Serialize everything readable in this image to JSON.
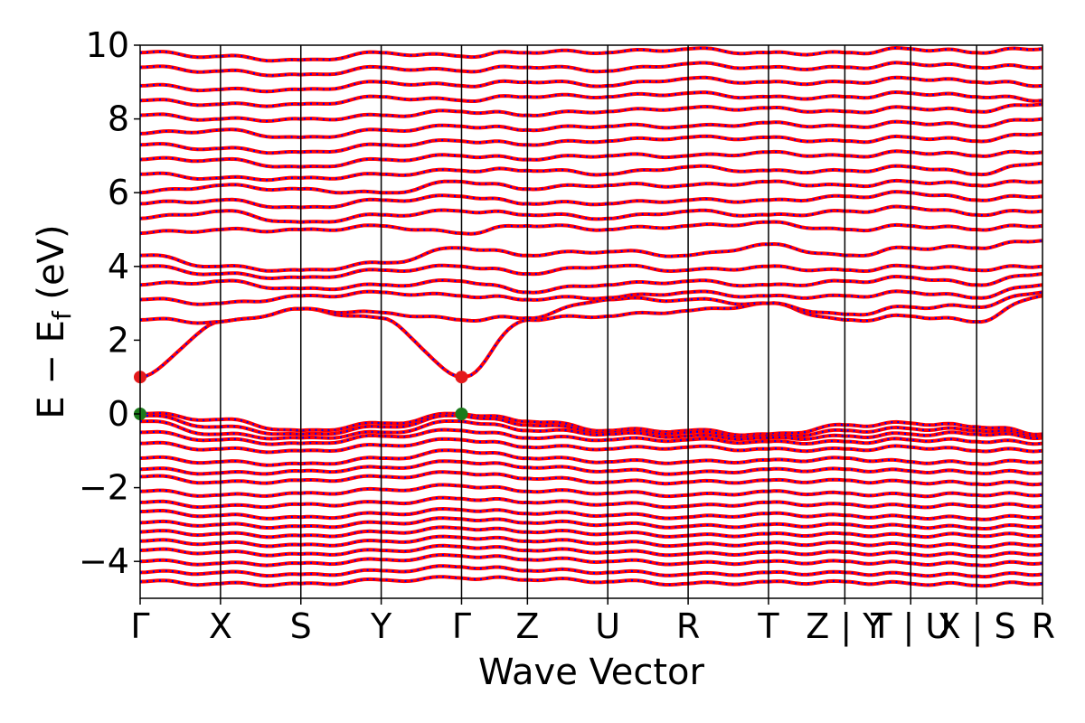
{
  "chart_data": {
    "type": "line",
    "title": "",
    "xlabel": "Wave Vector",
    "ylabel_main": "E − E",
    "ylabel_sub": "f",
    "ylabel_unit": " (eV)",
    "ylim": [
      -5,
      10
    ],
    "yticks": [
      -4,
      -2,
      0,
      2,
      4,
      6,
      8,
      10
    ],
    "ytick_labels": [
      "−4",
      "−2",
      "0",
      "2",
      "4",
      "6",
      "8",
      "10"
    ],
    "kpath_positions": [
      0,
      1,
      2,
      3,
      4,
      4.82,
      5.82,
      6.82,
      7.82,
      8.77,
      9.59,
      10.41,
      11.23
    ],
    "kpath_labels": [
      "Γ",
      "X",
      "S",
      "Y",
      "Γ",
      "Z",
      "U",
      "R",
      "T",
      "Z | Y",
      "T | U",
      "X | S",
      "R"
    ],
    "series": [
      {
        "color": "#ff0000",
        "style": "solid"
      },
      {
        "color": "#0000ff",
        "style": "dotted"
      }
    ],
    "markers": [
      {
        "x": 0,
        "y": 1.0,
        "color": "#e41a1c"
      },
      {
        "x": 4,
        "y": 1.0,
        "color": "#e41a1c"
      },
      {
        "x": 0,
        "y": 0.0,
        "color": "#1b7a1b"
      },
      {
        "x": 4,
        "y": 0.0,
        "color": "#1b7a1b"
      }
    ],
    "valence_bands": [
      [
        0.0,
        -0.15,
        -0.45,
        -0.25,
        0.0,
        -0.2,
        -0.45,
        -0.45,
        -0.55,
        -0.3,
        -0.25,
        -0.35,
        -0.55
      ],
      [
        -0.05,
        -0.35,
        -0.55,
        -0.35,
        -0.05,
        -0.3,
        -0.5,
        -0.5,
        -0.6,
        -0.45,
        -0.4,
        -0.45,
        -0.6
      ],
      [
        -0.2,
        -0.55,
        -0.65,
        -0.5,
        -0.2,
        -0.45,
        -0.55,
        -0.6,
        -0.65,
        -0.6,
        -0.55,
        -0.55,
        -0.65
      ],
      [
        -0.5,
        -0.7,
        -0.8,
        -0.6,
        -0.45,
        -0.65,
        -0.7,
        -0.7,
        -0.75,
        -0.75,
        -0.7,
        -0.75,
        -0.8
      ],
      [
        -0.8,
        -0.95,
        -1.0,
        -0.85,
        -0.7,
        -0.9,
        -0.95,
        -0.9,
        -0.95,
        -0.95,
        -0.9,
        -1.0,
        -1.0
      ],
      [
        -1.2,
        -1.3,
        -1.35,
        -1.2,
        -1.0,
        -1.2,
        -1.3,
        -1.3,
        -1.25,
        -1.2,
        -1.3,
        -1.35,
        -1.3
      ],
      [
        -1.5,
        -1.6,
        -1.55,
        -1.45,
        -1.3,
        -1.45,
        -1.55,
        -1.6,
        -1.5,
        -1.5,
        -1.55,
        -1.6,
        -1.6
      ],
      [
        -1.7,
        -1.85,
        -1.8,
        -1.7,
        -1.6,
        -1.75,
        -1.85,
        -1.85,
        -1.8,
        -1.8,
        -1.85,
        -1.9,
        -1.9
      ],
      [
        -2.1,
        -2.2,
        -2.15,
        -2.05,
        -1.95,
        -2.1,
        -2.15,
        -2.2,
        -2.1,
        -2.15,
        -2.2,
        -2.2,
        -2.2
      ],
      [
        -2.4,
        -2.5,
        -2.45,
        -2.4,
        -2.3,
        -2.4,
        -2.45,
        -2.5,
        -2.4,
        -2.45,
        -2.5,
        -2.5,
        -2.5
      ],
      [
        -2.65,
        -2.75,
        -2.8,
        -2.7,
        -2.6,
        -2.7,
        -2.75,
        -2.8,
        -2.7,
        -2.75,
        -2.8,
        -2.85,
        -2.8
      ],
      [
        -2.95,
        -3.0,
        -3.05,
        -2.95,
        -2.85,
        -2.95,
        -3.0,
        -3.05,
        -3.0,
        -3.0,
        -3.05,
        -3.1,
        -3.05
      ],
      [
        -3.2,
        -3.25,
        -3.3,
        -3.2,
        -3.1,
        -3.2,
        -3.25,
        -3.3,
        -3.25,
        -3.25,
        -3.3,
        -3.3,
        -3.3
      ],
      [
        -3.45,
        -3.5,
        -3.55,
        -3.45,
        -3.35,
        -3.45,
        -3.5,
        -3.55,
        -3.5,
        -3.5,
        -3.55,
        -3.6,
        -3.55
      ],
      [
        -3.7,
        -3.75,
        -3.8,
        -3.7,
        -3.6,
        -3.7,
        -3.75,
        -3.8,
        -3.75,
        -3.75,
        -3.8,
        -3.85,
        -3.8
      ],
      [
        -4.0,
        -4.05,
        -4.05,
        -3.95,
        -3.85,
        -3.95,
        -4.0,
        -4.05,
        -4.0,
        -4.0,
        -4.05,
        -4.1,
        -4.05
      ],
      [
        -4.3,
        -4.3,
        -4.35,
        -4.25,
        -4.15,
        -4.25,
        -4.3,
        -4.35,
        -4.3,
        -4.3,
        -4.35,
        -4.4,
        -4.35
      ],
      [
        -4.55,
        -4.6,
        -4.6,
        -4.5,
        -4.45,
        -4.5,
        -4.55,
        -4.6,
        -4.55,
        -4.55,
        -4.6,
        -4.65,
        -4.6
      ]
    ],
    "conduction_bands": [
      [
        1.0,
        2.5,
        2.85,
        2.6,
        1.0,
        2.55,
        2.65,
        2.8,
        3.0,
        2.55,
        2.65,
        2.5,
        3.2
      ],
      [
        2.55,
        2.5,
        2.85,
        2.75,
        2.55,
        2.6,
        3.1,
        3.1,
        3.0,
        2.7,
        2.9,
        2.9,
        3.3
      ],
      [
        3.1,
        3.0,
        3.2,
        3.3,
        3.2,
        3.1,
        3.15,
        3.3,
        3.2,
        3.2,
        3.3,
        3.15,
        3.5
      ],
      [
        3.5,
        3.6,
        3.4,
        3.5,
        3.6,
        3.3,
        3.5,
        3.6,
        3.5,
        3.6,
        3.7,
        3.5,
        3.8
      ],
      [
        4.0,
        3.8,
        3.7,
        3.9,
        4.0,
        3.8,
        4.0,
        3.9,
        4.0,
        3.9,
        4.0,
        3.9,
        4.0
      ],
      [
        4.3,
        4.0,
        3.9,
        4.1,
        4.5,
        4.3,
        4.4,
        4.3,
        4.6,
        4.3,
        4.5,
        4.5,
        4.7
      ],
      [
        4.9,
        5.0,
        5.0,
        5.1,
        4.9,
        5.1,
        5.0,
        5.1,
        5.2,
        5.0,
        5.1,
        5.0,
        5.1
      ],
      [
        5.3,
        5.5,
        5.2,
        5.4,
        5.5,
        5.4,
        5.3,
        5.5,
        5.4,
        5.5,
        5.6,
        5.4,
        5.5
      ],
      [
        5.7,
        5.8,
        5.6,
        5.8,
        5.9,
        5.7,
        5.7,
        5.8,
        5.8,
        5.9,
        6.0,
        5.8,
        5.9
      ],
      [
        6.0,
        6.2,
        6.1,
        6.0,
        6.3,
        6.1,
        6.2,
        6.2,
        6.3,
        6.2,
        6.3,
        6.2,
        6.3
      ],
      [
        6.5,
        6.4,
        6.4,
        6.5,
        6.6,
        6.6,
        6.5,
        6.7,
        6.6,
        6.6,
        6.7,
        6.5,
        6.8
      ],
      [
        6.9,
        6.9,
        6.7,
        6.9,
        7.0,
        6.9,
        7.0,
        7.0,
        7.1,
        7.0,
        7.1,
        7.0,
        7.1
      ],
      [
        7.3,
        7.2,
        7.1,
        7.3,
        7.4,
        7.3,
        7.4,
        7.5,
        7.5,
        7.4,
        7.5,
        7.4,
        7.6
      ],
      [
        7.6,
        7.7,
        7.5,
        7.7,
        7.8,
        7.7,
        7.8,
        7.8,
        7.9,
        7.8,
        7.9,
        7.8,
        8.0
      ],
      [
        8.1,
        8.0,
        8.0,
        8.1,
        8.2,
        8.1,
        8.2,
        8.3,
        8.3,
        8.2,
        8.3,
        8.2,
        8.4
      ],
      [
        8.5,
        8.4,
        8.4,
        8.6,
        8.5,
        8.6,
        8.6,
        8.7,
        8.6,
        8.6,
        8.7,
        8.6,
        8.5
      ],
      [
        8.9,
        8.8,
        8.8,
        9.0,
        8.9,
        9.0,
        8.9,
        9.1,
        9.0,
        9.0,
        9.1,
        9.0,
        8.9
      ],
      [
        9.4,
        9.3,
        9.2,
        9.4,
        9.3,
        9.4,
        9.3,
        9.5,
        9.4,
        9.4,
        9.5,
        9.4,
        9.4
      ],
      [
        9.8,
        9.7,
        9.6,
        9.8,
        9.7,
        9.8,
        9.8,
        9.9,
        9.8,
        9.8,
        9.9,
        9.8,
        9.9
      ]
    ]
  }
}
